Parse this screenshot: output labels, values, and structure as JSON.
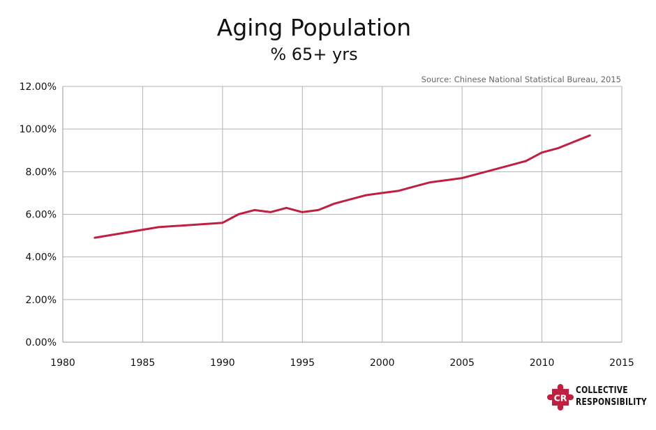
{
  "chart_data": {
    "type": "line",
    "title": "Aging Population",
    "subtitle": "% 65+ yrs",
    "source": "Source: Chinese National Statistical Bureau, 2015",
    "xlabel": "",
    "ylabel": "",
    "xlim": [
      1980,
      2015
    ],
    "ylim": [
      0,
      12
    ],
    "x_ticks": [
      "1980",
      "1985",
      "1990",
      "1995",
      "2000",
      "2005",
      "2010",
      "2015"
    ],
    "y_ticks": [
      "0.00%",
      "2.00%",
      "4.00%",
      "6.00%",
      "8.00%",
      "10.00%",
      "12.00%"
    ],
    "grid": true,
    "legend": "none",
    "series": [
      {
        "color": "#c0203f",
        "points": [
          {
            "x": 1982,
            "y": 4.9
          },
          {
            "x": 1986,
            "y": 5.4
          },
          {
            "x": 1990,
            "y": 5.6
          },
          {
            "x": 1991,
            "y": 6.0
          },
          {
            "x": 1992,
            "y": 6.2
          },
          {
            "x": 1993,
            "y": 6.1
          },
          {
            "x": 1994,
            "y": 6.3
          },
          {
            "x": 1995,
            "y": 6.1
          },
          {
            "x": 1996,
            "y": 6.2
          },
          {
            "x": 1997,
            "y": 6.5
          },
          {
            "x": 1998,
            "y": 6.7
          },
          {
            "x": 1999,
            "y": 6.9
          },
          {
            "x": 2000,
            "y": 7.0
          },
          {
            "x": 2001,
            "y": 7.1
          },
          {
            "x": 2002,
            "y": 7.3
          },
          {
            "x": 2003,
            "y": 7.5
          },
          {
            "x": 2004,
            "y": 7.6
          },
          {
            "x": 2005,
            "y": 7.7
          },
          {
            "x": 2006,
            "y": 7.9
          },
          {
            "x": 2007,
            "y": 8.1
          },
          {
            "x": 2008,
            "y": 8.3
          },
          {
            "x": 2009,
            "y": 8.5
          },
          {
            "x": 2010,
            "y": 8.9
          },
          {
            "x": 2011,
            "y": 9.1
          },
          {
            "x": 2012,
            "y": 9.4
          },
          {
            "x": 2013,
            "y": 9.7
          }
        ]
      }
    ]
  },
  "logo": {
    "initials": "CR",
    "line1": "COLLECTIVE",
    "line2": "RESPONSIBILITY",
    "color": "#c0203f"
  }
}
